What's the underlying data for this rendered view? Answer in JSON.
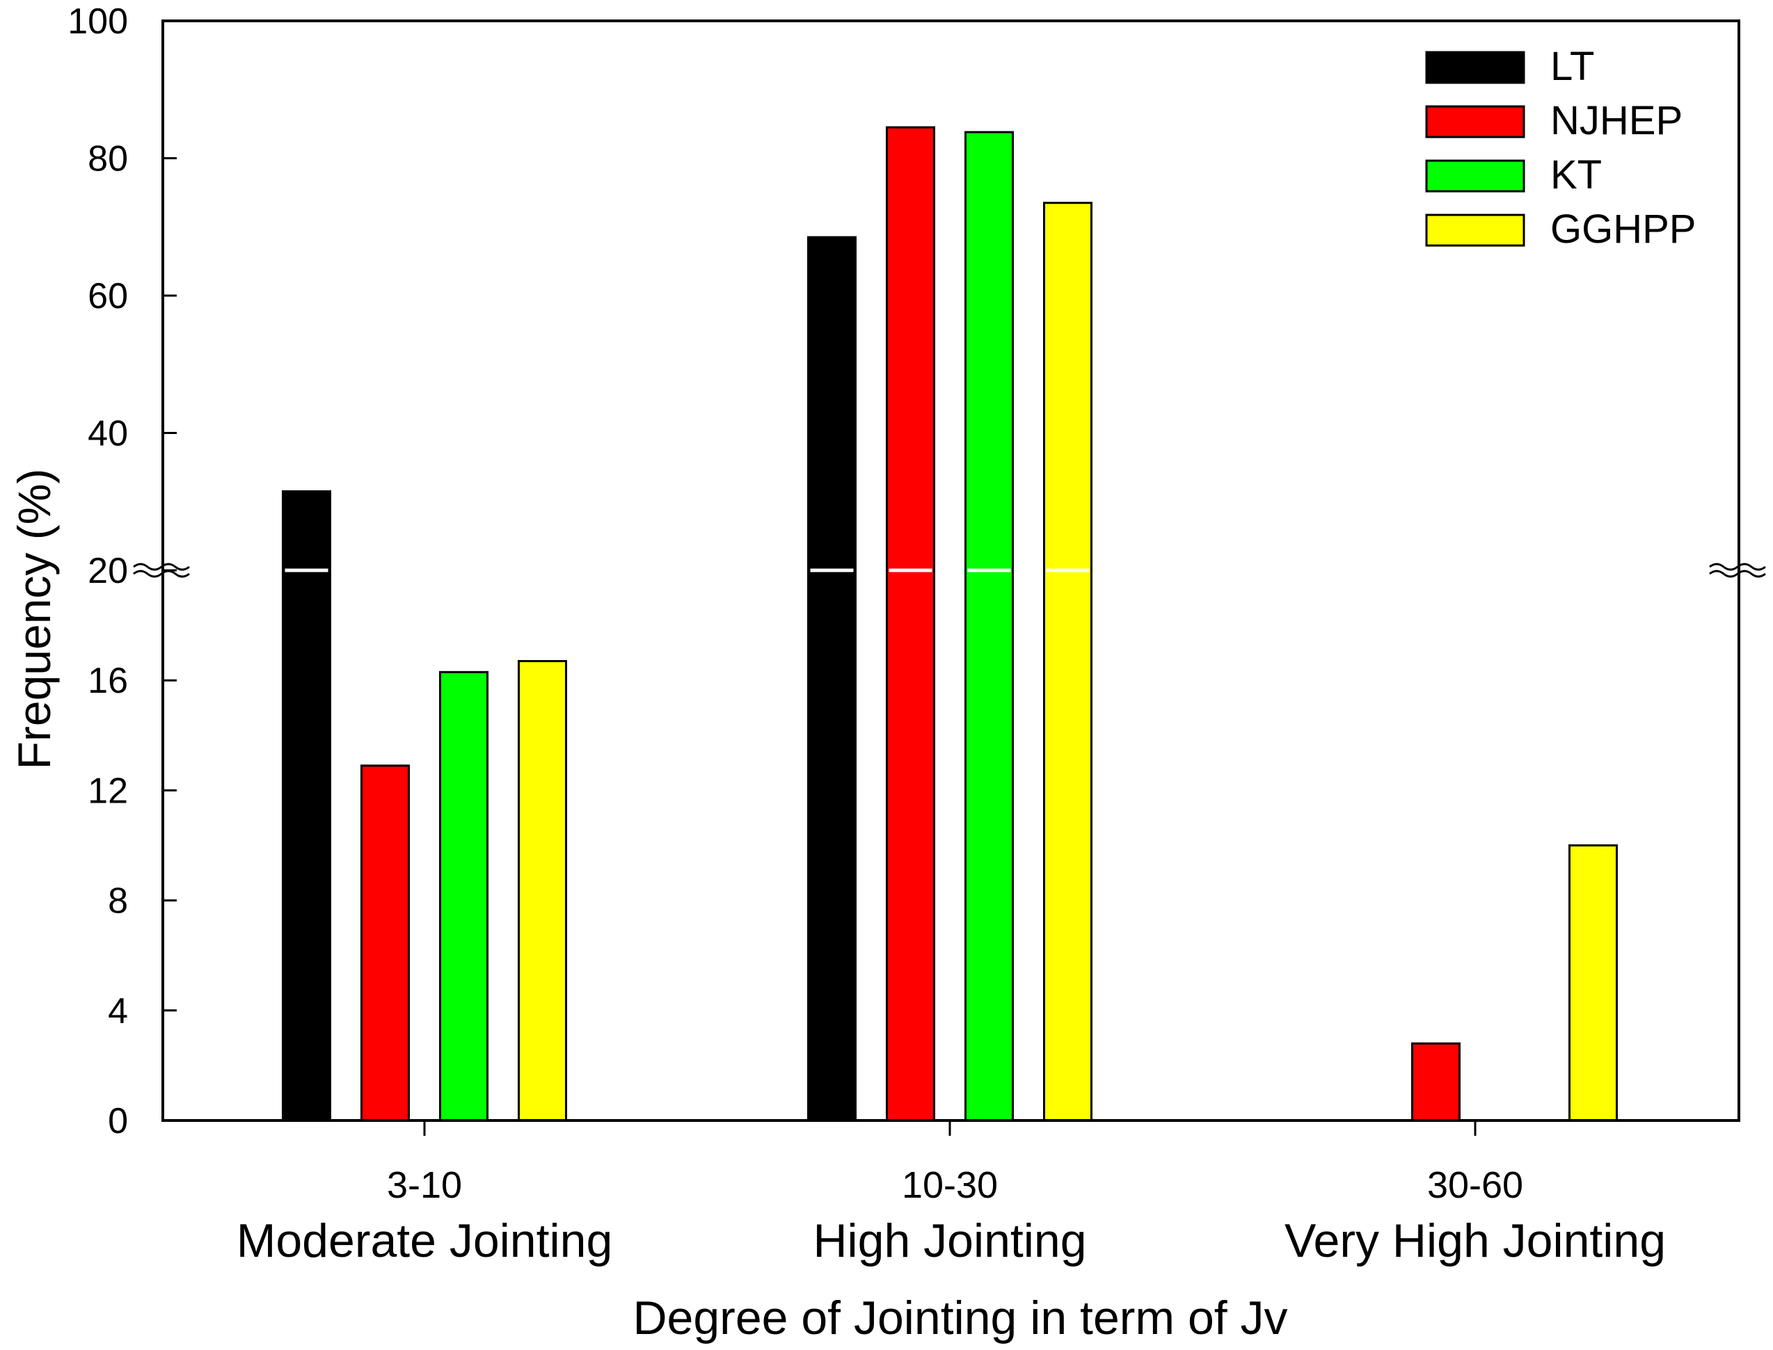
{
  "chart_data": {
    "type": "bar",
    "title": "",
    "ylabel": "Frequency (%)",
    "xlabel": "Degree of Jointing in term of Jv",
    "categories": [
      {
        "range": "3-10",
        "name": "Moderate Jointing"
      },
      {
        "range": "10-30",
        "name": "High Jointing"
      },
      {
        "range": "30-60",
        "name": "Very High Jointing"
      }
    ],
    "series": [
      {
        "name": "LT",
        "color": "#000000",
        "values": [
          31.5,
          68.5,
          null
        ]
      },
      {
        "name": "NJHEP",
        "color": "#ff0000",
        "values": [
          12.9,
          84.5,
          2.8
        ]
      },
      {
        "name": "KT",
        "color": "#00ff00",
        "values": [
          16.3,
          83.8,
          null
        ]
      },
      {
        "name": "GGHPP",
        "color": "#ffff00",
        "values": [
          16.7,
          73.5,
          10.0
        ]
      }
    ],
    "y_axis": {
      "type": "broken",
      "lower_segment": {
        "ylim": [
          0,
          20
        ],
        "ticks": [
          "0",
          "4",
          "8",
          "12",
          "16",
          "20"
        ]
      },
      "upper_segment": {
        "ylim": [
          20,
          100
        ],
        "ticks": [
          "40",
          "60",
          "80",
          "100"
        ]
      },
      "break_at": 20
    },
    "legend": {
      "position": "top-right"
    },
    "grid": false
  }
}
